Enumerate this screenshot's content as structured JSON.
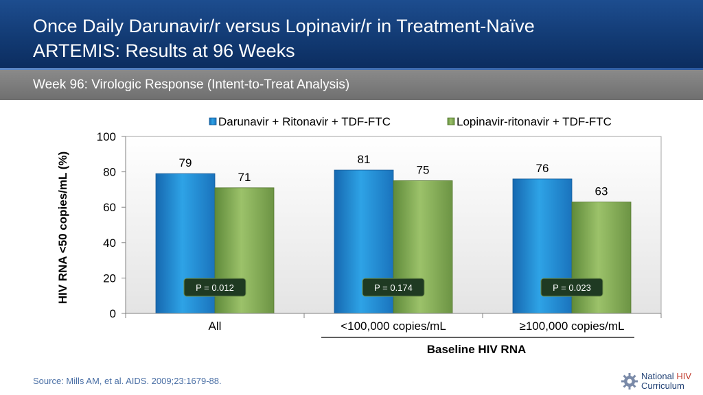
{
  "header": {
    "title_line1": "Once Daily Darunavir/r versus Lopinavir/r in Treatment-Naïve",
    "title_line2": "ARTEMIS: Results at 96 Weeks",
    "subtitle": "Week 96: Virologic Response (Intent-to-Treat Analysis)"
  },
  "chart_data": {
    "type": "bar",
    "ylabel": "HIV RNA <50 copies/mL (%)",
    "xlabel": "Baseline HIV RNA",
    "ylim": [
      0,
      100
    ],
    "yticks": [
      "0",
      "20",
      "40",
      "60",
      "80",
      "100"
    ],
    "grid": false,
    "legend_position": "top",
    "categories": [
      "All",
      "<100,000 copies/mL",
      "≥100,000 copies/mL"
    ],
    "series": [
      {
        "name": "Darunavir + Ritonavir + TDF-FTC",
        "values": [
          79,
          81,
          76
        ],
        "color": "#1f8fd6"
      },
      {
        "name": "Lopinavir-ritonavir + TDF-FTC",
        "values": [
          71,
          75,
          63
        ],
        "color": "#7fa851"
      }
    ],
    "pvalues": [
      "P = 0.012",
      "P = 0.174",
      "P = 0.023"
    ]
  },
  "footer": {
    "source": "Source: Mills AM, et al. AIDS. 2009;23:1679-88.",
    "logo_line1_a": "National ",
    "logo_line1_b": "HIV",
    "logo_line2": "Curriculum",
    "logo_icon": "gear-icon"
  }
}
